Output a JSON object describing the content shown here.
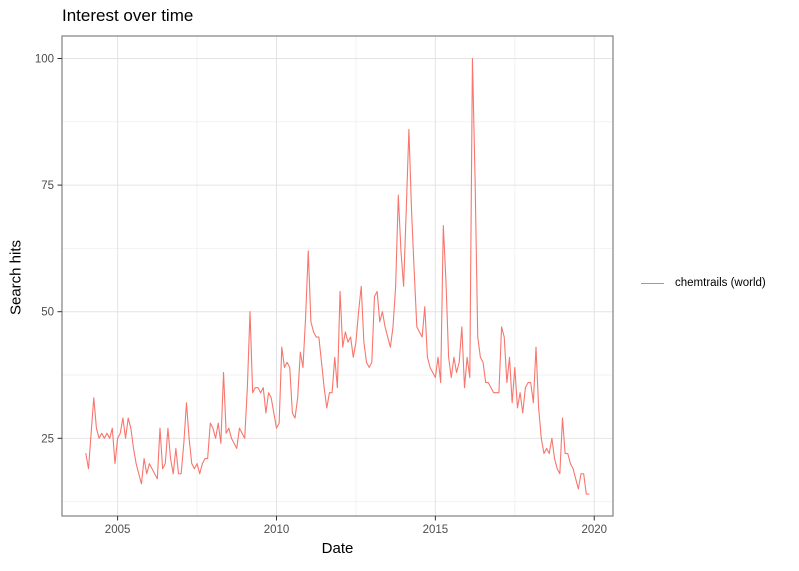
{
  "page": {
    "title": "Interest over time"
  },
  "axes": {
    "x": {
      "title": "Date",
      "ticks": [
        2005,
        2010,
        2015,
        2020
      ],
      "tick_labels": [
        "2005",
        "2010",
        "2015",
        "2020"
      ],
      "minor": [
        2007.5,
        2012.5,
        2017.5
      ],
      "domain": [
        2003.25,
        2020.59
      ]
    },
    "y": {
      "title": "Search hits",
      "ticks": [
        25,
        50,
        75,
        100
      ],
      "tick_labels": [
        "25",
        "50",
        "75",
        "100"
      ],
      "minor": [
        12.5,
        37.5,
        62.5,
        87.5
      ],
      "domain": [
        9.66,
        104.44
      ]
    }
  },
  "legend": {
    "entries": [
      {
        "label": "chemtrails (world)",
        "color": "#F8766D"
      }
    ]
  },
  "colors": {
    "line": "#F8766D",
    "grid_major": "#E4E4E4",
    "grid_minor": "#F2F2F2",
    "panel_border": "#808080",
    "panel_bg": "#FFFFFF",
    "tick": "#333333",
    "tick_label": "#4D4D4D",
    "text": "#000000"
  },
  "chart_data": {
    "type": "line",
    "title": "Interest over time",
    "xlabel": "Date",
    "ylabel": "Search hits",
    "series_name": "chemtrails (world)",
    "x_start": "2004-01",
    "x_end": "2019-11",
    "grid": true,
    "legend_position": "right",
    "ylim": [
      9.66,
      104.44
    ],
    "monthly": [
      {
        "year": 2004,
        "values": [
          22,
          19,
          26,
          33,
          27,
          25,
          26,
          25,
          26,
          25,
          27,
          20
        ]
      },
      {
        "year": 2005,
        "values": [
          25,
          26,
          29,
          25,
          29,
          27,
          23,
          20,
          18,
          16,
          21,
          18
        ]
      },
      {
        "year": 2006,
        "values": [
          20,
          19,
          18,
          17,
          27,
          19,
          20,
          27,
          21,
          18,
          23,
          18
        ]
      },
      {
        "year": 2007,
        "values": [
          18,
          24,
          32,
          25,
          20,
          19,
          20,
          18,
          20,
          21,
          21,
          28
        ]
      },
      {
        "year": 2008,
        "values": [
          27,
          25,
          28,
          24,
          38,
          26,
          27,
          25,
          24,
          23,
          27,
          26
        ]
      },
      {
        "year": 2009,
        "values": [
          25,
          35,
          50,
          34,
          35,
          35,
          34,
          35,
          30,
          34,
          33,
          30
        ]
      },
      {
        "year": 2010,
        "values": [
          27,
          28,
          43,
          39,
          40,
          39,
          30,
          29,
          33,
          42,
          39,
          49
        ]
      },
      {
        "year": 2011,
        "values": [
          62,
          48,
          46,
          45,
          45,
          40,
          35,
          31,
          34,
          34,
          41,
          35
        ]
      },
      {
        "year": 2012,
        "values": [
          54,
          43,
          46,
          44,
          45,
          41,
          44,
          50,
          55,
          44,
          40,
          39
        ]
      },
      {
        "year": 2013,
        "values": [
          40,
          53,
          54,
          48,
          50,
          47,
          45,
          43,
          47,
          55,
          73,
          62
        ]
      },
      {
        "year": 2014,
        "values": [
          55,
          70,
          86,
          70,
          58,
          47,
          46,
          45,
          51,
          41,
          39,
          38
        ]
      },
      {
        "year": 2015,
        "values": [
          37,
          41,
          36,
          67,
          56,
          41,
          37,
          41,
          38,
          40,
          47,
          35
        ]
      },
      {
        "year": 2016,
        "values": [
          41,
          37,
          100,
          76,
          45,
          41,
          40,
          36,
          36,
          35,
          34,
          34
        ]
      },
      {
        "year": 2017,
        "values": [
          34,
          47,
          45,
          36,
          41,
          32,
          39,
          31,
          34,
          30,
          35,
          36
        ]
      },
      {
        "year": 2018,
        "values": [
          36,
          32,
          43,
          31,
          25,
          22,
          23,
          22,
          25,
          21,
          19,
          18
        ]
      },
      {
        "year": 2019,
        "values": [
          29,
          22,
          22,
          20,
          19,
          17,
          15,
          18,
          18,
          14,
          14
        ]
      }
    ]
  }
}
